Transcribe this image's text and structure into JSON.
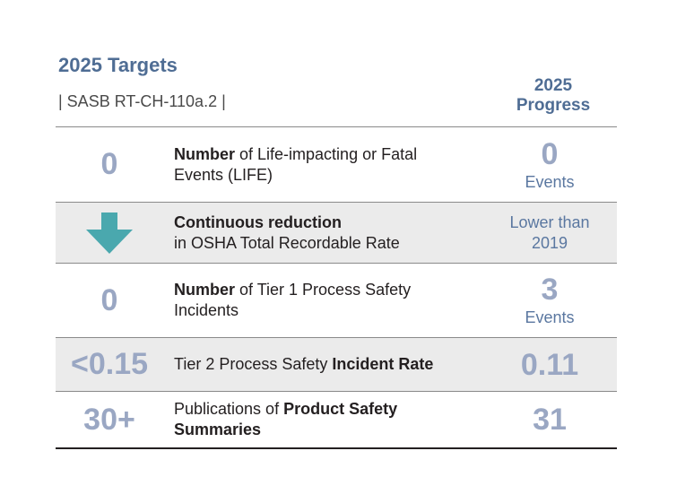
{
  "header": {
    "title": "2025 Targets",
    "subtitle": "| SASB RT-CH-110a.2 |",
    "progress_line1": "2025",
    "progress_line2": "Progress"
  },
  "colors": {
    "title": "#4f6d94",
    "big_number": "#9aa7c3",
    "progress_text": "#5a77a0",
    "arrow": "#4aa8ae",
    "shaded_row": "#ebebeb"
  },
  "rows": [
    {
      "target": "0",
      "desc_bold": "Number",
      "desc_rest": " of Life-impacting or Fatal Events (LIFE)",
      "progress_value": "0",
      "progress_unit": "Events"
    },
    {
      "target_icon": "down-arrow-icon",
      "desc_bold": "Continuous reduction",
      "desc_rest": "in OSHA Total Recordable Rate",
      "progress_text": "Lower than 2019"
    },
    {
      "target": "0",
      "desc_bold": "Number",
      "desc_rest": " of Tier 1 Process Safety Incidents",
      "progress_value": "3",
      "progress_unit": "Events"
    },
    {
      "target": "<0.15",
      "desc_plain": "Tier 2 Process Safety ",
      "desc_bold": "Incident Rate",
      "progress_value": "0.11"
    },
    {
      "target": "30+",
      "desc_plain": "Publications of ",
      "desc_bold": "Product Safety Summaries",
      "progress_value": "31"
    }
  ]
}
